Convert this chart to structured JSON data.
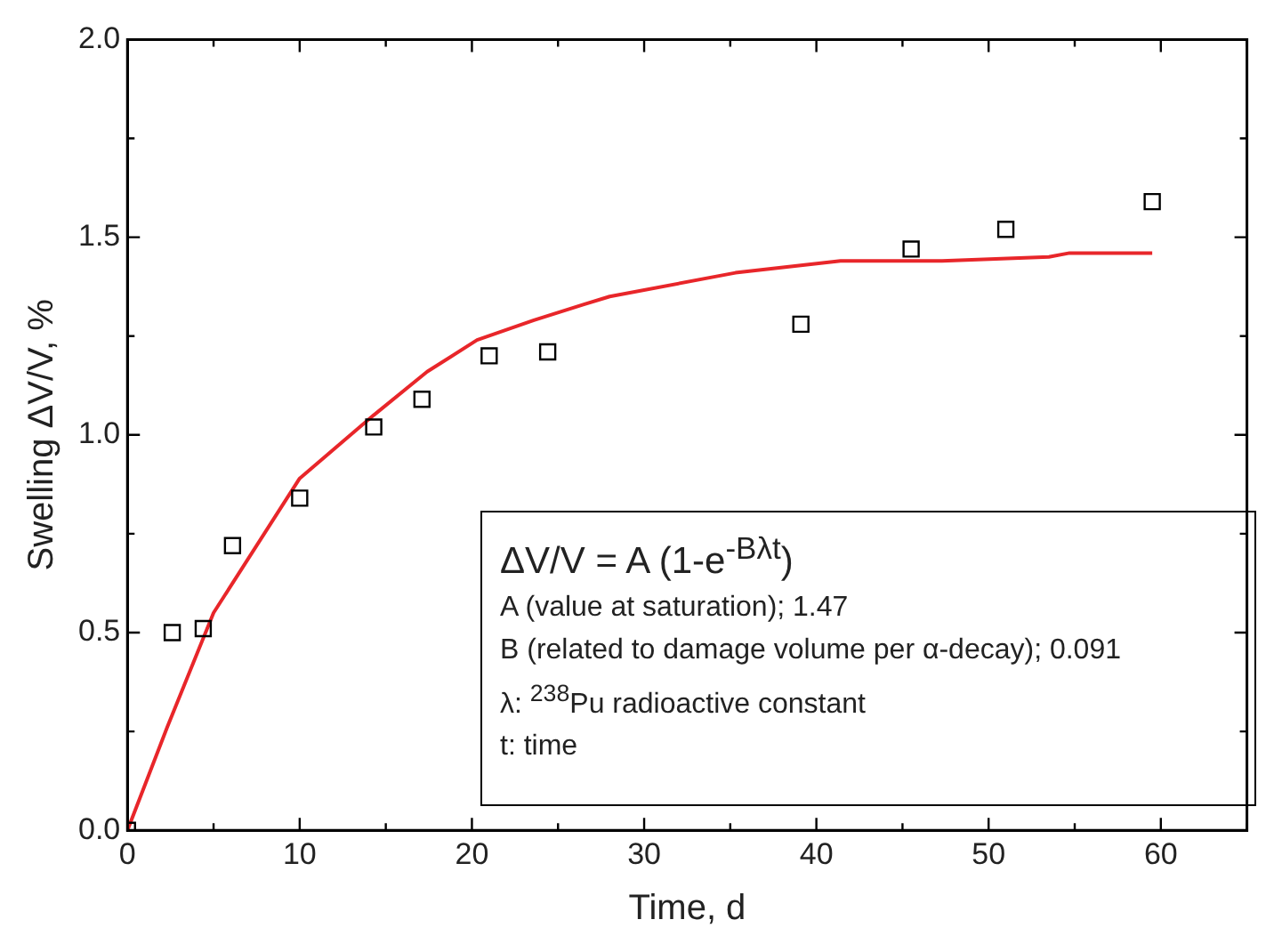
{
  "chart_data": {
    "type": "scatter",
    "xlabel": "Time, d",
    "ylabel": "Swelling ΔV/V, %",
    "xlim": [
      0,
      65
    ],
    "ylim": [
      0,
      2
    ],
    "xticks": [
      0,
      {
        "value": 5,
        "label": null
      },
      10,
      {
        "value": 15,
        "label": null
      },
      20,
      {
        "value": 25,
        "label": null
      },
      30,
      {
        "value": 35,
        "label": null
      },
      40,
      {
        "value": 45,
        "label": null
      },
      50,
      {
        "value": 55,
        "label": null
      },
      60,
      {
        "value": 65,
        "label": null
      }
    ],
    "yticks": [
      {
        "value": 0,
        "label": "0.0"
      },
      {
        "value": 0.25,
        "label": null
      },
      {
        "value": 0.5,
        "label": "0.5"
      },
      {
        "value": 0.75,
        "label": null
      },
      {
        "value": 1,
        "label": "1.0"
      },
      {
        "value": 1.25,
        "label": null
      },
      {
        "value": 1.5,
        "label": "1.5"
      },
      {
        "value": 1.75,
        "label": null
      },
      {
        "value": 2,
        "label": "2.0"
      }
    ],
    "grid": false,
    "legend": false,
    "series": [
      {
        "type": "scatter",
        "marker": "square",
        "color": "#000000",
        "x": [
          0,
          2.6,
          4.4,
          6.1,
          10,
          14.3,
          17.1,
          21,
          24.4,
          39.1,
          45.5,
          51,
          59.5
        ],
        "values": [
          0,
          0.5,
          0.51,
          0.72,
          0.84,
          1.02,
          1.09,
          1.2,
          1.21,
          1.28,
          1.47,
          1.52,
          1.59
        ]
      },
      {
        "type": "line",
        "marker": "none",
        "line_style": "solid",
        "color": "#e8262a",
        "x": [
          0,
          2.3,
          5,
          10,
          14.3,
          17.4,
          20.3,
          23.6,
          26.5,
          28,
          35.3,
          41.4,
          47.3,
          53.5,
          54.7,
          59.5
        ],
        "values": [
          0,
          0.26,
          0.55,
          0.89,
          1.05,
          1.16,
          1.24,
          1.29,
          1.33,
          1.35,
          1.41,
          1.44,
          1.44,
          1.45,
          1.46,
          1.46
        ]
      }
    ],
    "annotations": [
      "ΔV/V = A (1-e$^{-Bλt}$)",
      "A (value at saturation); 1.47",
      "B (related to damage volume per α-decay); 0.091",
      "λ: $^{238}$Pu radioactive constant",
      "t: time"
    ]
  }
}
